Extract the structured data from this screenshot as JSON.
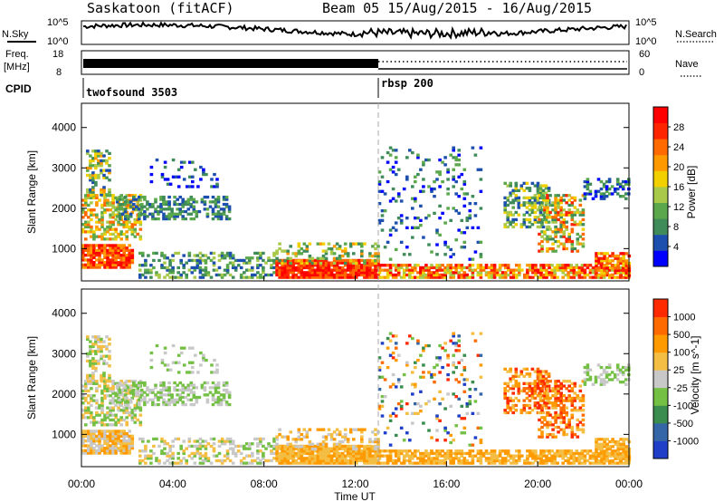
{
  "header": {
    "title": "Saskatoon (fitACF)",
    "beam_date": "Beam 05  15/Aug/2015 - 16/Aug/2015"
  },
  "strips": {
    "nsky_label": "N.Sky",
    "nsearch_label": "N.Search",
    "noise_ticks": [
      "10^5",
      "10^0"
    ],
    "noise_ticks_right": [
      "10^5",
      "10^0"
    ],
    "freq_label": "Freq.",
    "freq_unit": "[MHz]",
    "freq_ticks": [
      "18",
      "8"
    ],
    "nave_ticks": [
      "60",
      "0"
    ],
    "nave_label": "Nave",
    "cpid_label": "CPID",
    "cpid_entries": [
      {
        "label": "twofsound 3503",
        "start_hour": 0
      },
      {
        "label": "rbsp 200",
        "start_hour": 13
      }
    ]
  },
  "chart_data": [
    {
      "type": "heatmap",
      "name": "power",
      "ylabel": "Slant Range [km]",
      "yticks": [
        "4000",
        "3000",
        "2000",
        "1000"
      ],
      "ylim": [
        200,
        4600
      ],
      "xlim": [
        0,
        24
      ],
      "colorbar": {
        "label": "Power [dB]",
        "ticks": [
          "28",
          "24",
          "20",
          "16",
          "12",
          "8",
          "4"
        ],
        "colors": [
          "#0000ff",
          "#1d4faf",
          "#3f8b5a",
          "#5aa84b",
          "#a8c94a",
          "#f2d000",
          "#ff9900",
          "#ff6a00",
          "#ff2400",
          "#ff0000"
        ]
      }
    },
    {
      "type": "heatmap",
      "name": "velocity",
      "ylabel": "Slant Range [km]",
      "yticks": [
        "4000",
        "3000",
        "2000",
        "1000"
      ],
      "ylim": [
        200,
        4600
      ],
      "xlim": [
        0,
        24
      ],
      "xlabel": "Time UT",
      "xticks": [
        "00:00",
        "04:00",
        "08:00",
        "12:00",
        "16:00",
        "20:00",
        "00:00"
      ],
      "colorbar": {
        "label": "Velocity [m s^-1]",
        "ticks": [
          "1000",
          "500",
          "100",
          "25",
          "-25",
          "-100",
          "-500",
          "-1000"
        ],
        "colors": [
          "#1f3fc8",
          "#3466a8",
          "#3a8c4f",
          "#74c044",
          "#c8c8c8",
          "#f4be44",
          "#ff9a00",
          "#ff6a00",
          "#ff2a00"
        ]
      }
    }
  ]
}
